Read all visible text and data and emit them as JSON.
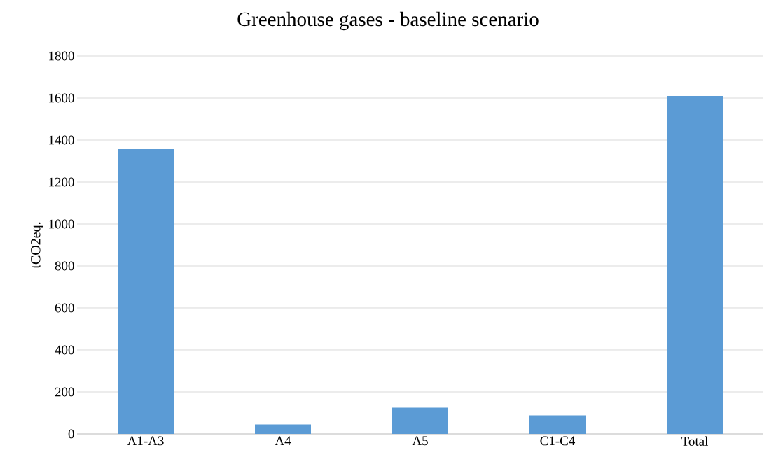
{
  "chart_data": {
    "type": "bar",
    "title": "Greenhouse gases - baseline scenario",
    "ylabel": "tCO2eq.",
    "categories": [
      "A1-A3",
      "A4",
      "A5",
      "C1-C4",
      "Total"
    ],
    "values": [
      1357,
      45,
      125,
      88,
      1610
    ],
    "color": "#5b9bd5",
    "ylim": [
      0,
      1800
    ],
    "yticks": [
      0,
      200,
      400,
      600,
      800,
      1000,
      1200,
      1400,
      1600,
      1800
    ],
    "grid": "y"
  }
}
